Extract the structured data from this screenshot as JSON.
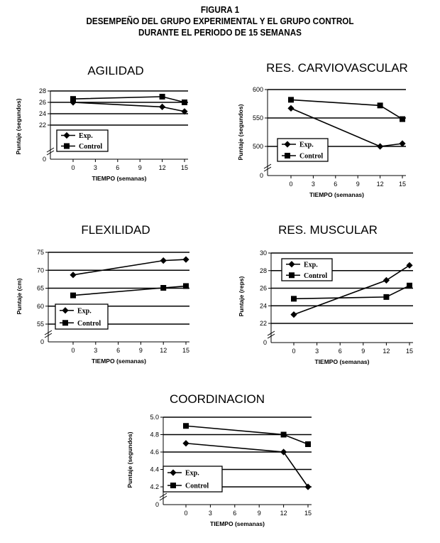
{
  "figure": {
    "number": "FIGURA 1",
    "title_line1": "DESEMPEÑO DEL GRUPO EXPERIMENTAL Y EL GRUPO CONTROL",
    "title_line2": "DURANTE EL PERIODO DE 15 SEMANAS"
  },
  "chart_data": [
    {
      "id": "agilidad",
      "type": "line",
      "title": "AGILIDAD",
      "xlabel": "TIEMPO (semanas)",
      "ylabel": "Puntaje (segundos)",
      "x_ticks": [
        0,
        3,
        6,
        9,
        12,
        15
      ],
      "y_ticks": [
        22,
        24,
        26,
        28
      ],
      "ylim": [
        22,
        28
      ],
      "x": [
        0,
        12,
        15
      ],
      "grid": true,
      "legend": "bottom-left",
      "series": [
        {
          "name": "Exp.",
          "marker": "diamond",
          "values": [
            26.0,
            25.2,
            24.4
          ]
        },
        {
          "name": "Control",
          "marker": "square",
          "values": [
            26.6,
            27.0,
            26.0
          ]
        }
      ]
    },
    {
      "id": "carvio",
      "type": "line",
      "title": "RES. CARVIOVASCULAR",
      "xlabel": "TIEMPO (semanas)",
      "ylabel": "Puntaje (segundos)",
      "x_ticks": [
        0,
        3,
        6,
        9,
        12,
        15
      ],
      "y_ticks": [
        500,
        550,
        600
      ],
      "ylim": [
        500,
        600
      ],
      "x": [
        0,
        12,
        15
      ],
      "grid": true,
      "legend": "bottom-left",
      "series": [
        {
          "name": "Exp.",
          "marker": "diamond",
          "values": [
            567,
            500,
            505
          ]
        },
        {
          "name": "Control",
          "marker": "square",
          "values": [
            582,
            572,
            548
          ]
        }
      ]
    },
    {
      "id": "flexilidad",
      "type": "line",
      "title": "FLEXILIDAD",
      "xlabel": "TIEMPO (semanas)",
      "ylabel": "Puntaje (cm)",
      "x_ticks": [
        0,
        3,
        6,
        9,
        12,
        15
      ],
      "y_ticks": [
        55,
        60,
        65,
        70,
        75
      ],
      "ylim": [
        55,
        75
      ],
      "x": [
        0,
        12,
        15
      ],
      "grid": true,
      "legend": "bottom-left",
      "series": [
        {
          "name": "Exp.",
          "marker": "diamond",
          "values": [
            68.7,
            72.7,
            73.0
          ]
        },
        {
          "name": "Control",
          "marker": "square",
          "values": [
            63.0,
            65.1,
            65.6
          ]
        }
      ]
    },
    {
      "id": "muscular",
      "type": "line",
      "title": "RES. MUSCULAR",
      "xlabel": "TIEMPO (semanas)",
      "ylabel": "Puntaje (reps)",
      "x_ticks": [
        0,
        3,
        6,
        9,
        12,
        15
      ],
      "y_ticks": [
        22,
        24,
        26,
        28,
        30
      ],
      "ylim": [
        22,
        30
      ],
      "x": [
        0,
        12,
        15
      ],
      "grid": true,
      "legend": "top-left",
      "series": [
        {
          "name": "Exp.",
          "marker": "diamond",
          "values": [
            23.0,
            26.9,
            28.6
          ]
        },
        {
          "name": "Control",
          "marker": "square",
          "values": [
            24.8,
            25.0,
            26.3
          ]
        }
      ]
    },
    {
      "id": "coordinacion",
      "type": "line",
      "title": "COORDINACION",
      "xlabel": "TIEMPO (semanas)",
      "ylabel": "Puntaje (segundos)",
      "x_ticks": [
        0,
        3,
        6,
        9,
        12,
        15
      ],
      "y_ticks": [
        "4.2",
        "4.4",
        "4.6",
        "4.8",
        "5.0"
      ],
      "ylim": [
        4.2,
        5.0
      ],
      "x": [
        0,
        12,
        15
      ],
      "grid": true,
      "legend": "bottom-left",
      "series": [
        {
          "name": "Exp.",
          "marker": "diamond",
          "values": [
            4.7,
            4.6,
            4.2
          ]
        },
        {
          "name": "Control",
          "marker": "square",
          "values": [
            4.9,
            4.8,
            4.69
          ]
        }
      ]
    }
  ]
}
